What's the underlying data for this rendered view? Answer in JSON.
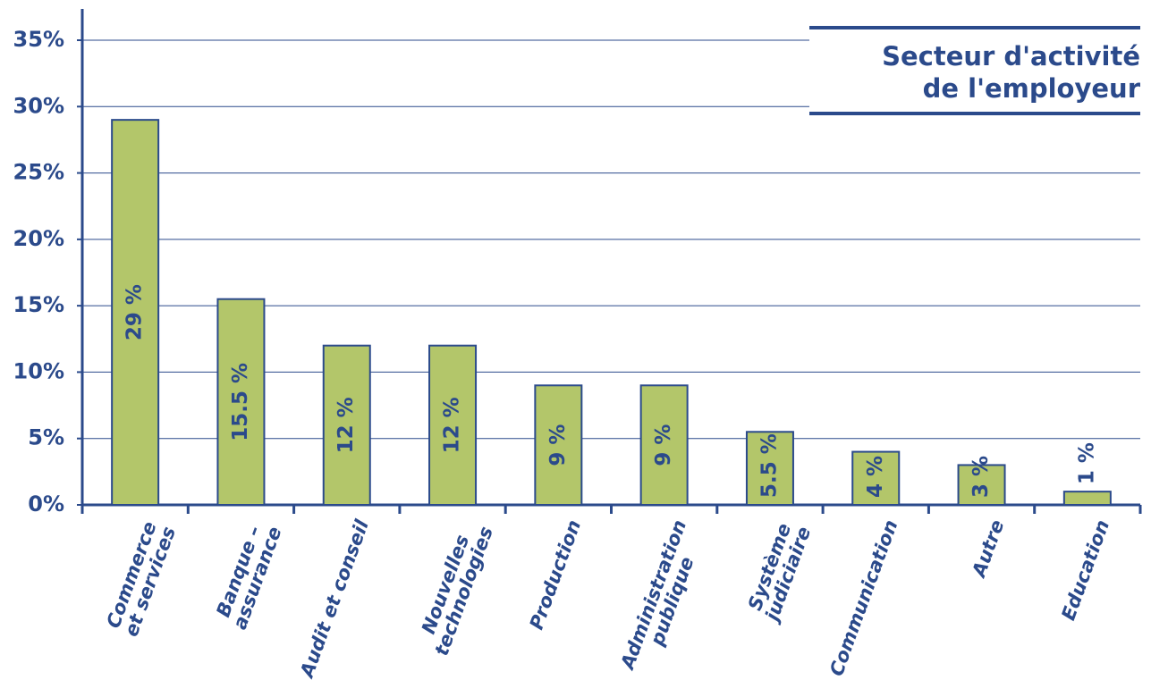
{
  "chart_data": {
    "type": "bar",
    "title": "Secteur d'activité\nde l'employeur",
    "categories": [
      "Commerce\net services",
      "Banque –\nassurance",
      "Audit et conseil",
      "Nouvelles\ntechnologies",
      "Production",
      "Administration\npublique",
      "Système\njudiciaire",
      "Communication",
      "Autre",
      "Education"
    ],
    "values": [
      29,
      15.5,
      12,
      12,
      9,
      9,
      5.5,
      4,
      3,
      1
    ],
    "value_labels": [
      "29 %",
      "15.5 %",
      "12 %",
      "12 %",
      "9 %",
      "9 %",
      "5.5 %",
      "4 %",
      "3 %",
      "1 %"
    ],
    "color": "#b3c66a",
    "ylim": [
      0,
      37
    ],
    "yticks": [
      {
        "value": 0,
        "label": "0%"
      },
      {
        "value": 5,
        "label": "5%"
      },
      {
        "value": 10,
        "label": "10%"
      },
      {
        "value": 15,
        "label": "15%"
      },
      {
        "value": 20,
        "label": "20%"
      },
      {
        "value": 25,
        "label": "25%"
      },
      {
        "value": 30,
        "label": "30%"
      },
      {
        "value": 35,
        "label": "35%"
      }
    ],
    "grid": true
  }
}
